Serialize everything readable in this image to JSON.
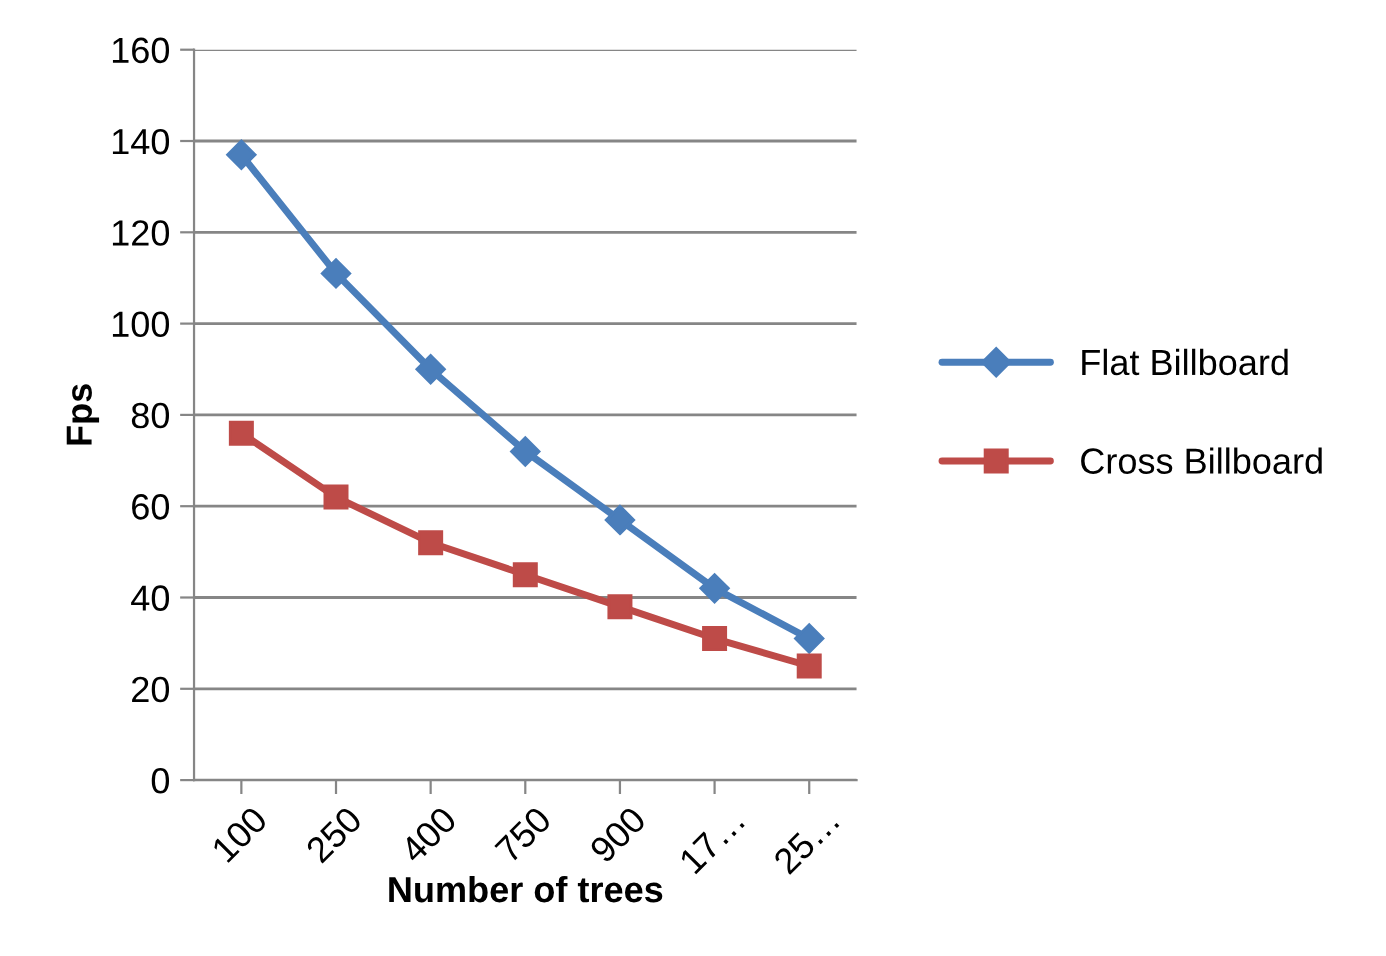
{
  "chart_data": {
    "type": "line",
    "xlabel": "Number of trees",
    "ylabel": "Fps",
    "categories": [
      "100",
      "250",
      "400",
      "750",
      "900",
      "17…",
      "25…"
    ],
    "series": [
      {
        "name": "Flat Billboard",
        "color": "#4a7ebb",
        "marker": "diamond",
        "values": [
          137,
          111,
          90,
          72,
          57,
          42,
          31
        ]
      },
      {
        "name": "Cross Billboard",
        "color": "#be4b48",
        "marker": "square",
        "values": [
          76,
          62,
          52,
          45,
          38,
          31,
          25
        ]
      }
    ],
    "ylim": [
      0,
      160
    ],
    "yticks": [
      0,
      20,
      40,
      60,
      80,
      100,
      120,
      140,
      160
    ],
    "grid": "y",
    "legend": "right",
    "line_style": "solid"
  }
}
